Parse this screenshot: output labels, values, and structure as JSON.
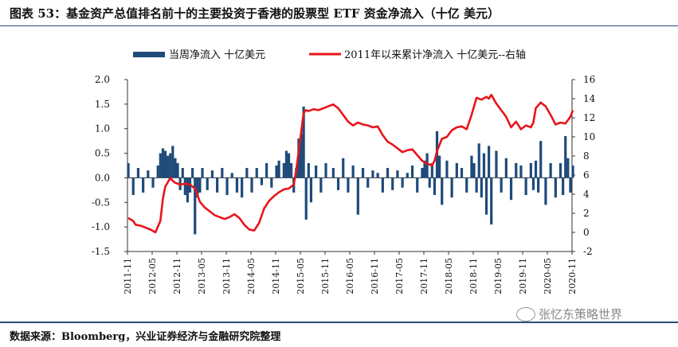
{
  "title": "图表 53：基金资产总值排名前十的主要投资于香港的股票型 ETF 资金净流入（十亿 美元）",
  "source": "数据来源：Bloomberg，兴业证券经济与金融研究院整理",
  "watermark": "张忆东策略世界",
  "colors": {
    "bar": "#1f4a7a",
    "line": "#e8141a",
    "rule": "#2a4d7a"
  },
  "chart_data": {
    "type": "bar+line",
    "x_tick_labels": [
      "2011-11",
      "2012-05",
      "2012-11",
      "2013-05",
      "2013-11",
      "2014-05",
      "2014-11",
      "2015-05",
      "2015-11",
      "2016-05",
      "2016-11",
      "2017-05",
      "2017-11",
      "2018-05",
      "2018-11",
      "2019-05",
      "2019-11",
      "2020-05",
      "2020-11"
    ],
    "y_left": {
      "range": [
        -1.5,
        2.0
      ],
      "ticks": [
        "2.0",
        "1.5",
        "1.0",
        "0.5",
        "0.0",
        "-0.5",
        "-1.0",
        "-1.5"
      ]
    },
    "y_right": {
      "range": [
        -2,
        16
      ],
      "ticks": [
        "16",
        "14",
        "12",
        "10",
        "8",
        "6",
        "4",
        "2",
        "0",
        "-2"
      ]
    },
    "series": [
      {
        "name": "当周净流入 十亿美元",
        "kind": "bar",
        "axis": "left",
        "x": [
          2011.85,
          2011.95,
          2012.05,
          2012.15,
          2012.25,
          2012.35,
          2012.45,
          2012.5,
          2012.55,
          2012.6,
          2012.65,
          2012.7,
          2012.75,
          2012.8,
          2012.85,
          2012.9,
          2012.95,
          2013.0,
          2013.05,
          2013.1,
          2013.15,
          2013.2,
          2013.25,
          2013.3,
          2013.35,
          2013.45,
          2013.55,
          2013.65,
          2013.75,
          2013.85,
          2013.95,
          2014.05,
          2014.15,
          2014.25,
          2014.35,
          2014.45,
          2014.55,
          2014.65,
          2014.75,
          2014.85,
          2014.9,
          2015.0,
          2015.05,
          2015.1,
          2015.15,
          2015.2,
          2015.25,
          2015.3,
          2015.35,
          2015.4,
          2015.45,
          2015.5,
          2015.55,
          2015.65,
          2015.75,
          2015.85,
          2016.0,
          2016.1,
          2016.2,
          2016.3,
          2016.4,
          2016.5,
          2016.6,
          2016.7,
          2016.8,
          2016.9,
          2017.0,
          2017.1,
          2017.2,
          2017.3,
          2017.4,
          2017.5,
          2017.6,
          2017.7,
          2017.8,
          2017.85,
          2017.9,
          2017.95,
          2018.0,
          2018.05,
          2018.1,
          2018.15,
          2018.2,
          2018.3,
          2018.4,
          2018.5,
          2018.6,
          2018.7,
          2018.8,
          2018.85,
          2018.9,
          2018.95,
          2019.0,
          2019.05,
          2019.1,
          2019.15,
          2019.2,
          2019.3,
          2019.4,
          2019.5,
          2019.6,
          2019.7,
          2019.8,
          2019.9,
          2020.0,
          2020.05,
          2020.1,
          2020.15,
          2020.2,
          2020.3,
          2020.4,
          2020.5,
          2020.6,
          2020.65,
          2020.7,
          2020.75,
          2020.8,
          2020.85
        ],
        "values": [
          0.3,
          -0.35,
          0.2,
          -0.3,
          0.15,
          -0.2,
          0.25,
          0.5,
          0.6,
          0.55,
          0.45,
          0.5,
          0.65,
          0.4,
          0.3,
          -0.25,
          0.2,
          -0.35,
          -0.5,
          -0.3,
          0.2,
          -1.15,
          -0.4,
          -0.3,
          0.2,
          -0.25,
          0.15,
          -0.3,
          0.2,
          -0.35,
          0.1,
          -0.3,
          -0.4,
          0.2,
          -0.3,
          0.2,
          -0.15,
          0.3,
          -0.2,
          0.25,
          0.35,
          0.3,
          0.55,
          0.5,
          0.3,
          -0.3,
          0.2,
          0.8,
          0.9,
          1.45,
          -0.85,
          0.3,
          -0.5,
          0.25,
          -0.3,
          0.3,
          0.2,
          -0.25,
          0.4,
          -0.3,
          0.25,
          -0.75,
          0.2,
          -0.2,
          0.15,
          0.1,
          -0.3,
          0.2,
          -0.25,
          0.15,
          -0.2,
          0.1,
          0.25,
          -0.3,
          0.2,
          0.35,
          0.5,
          -0.2,
          0.3,
          -0.35,
          0.95,
          0.45,
          -0.55,
          0.35,
          -0.4,
          0.3,
          0.2,
          -0.3,
          0.45,
          0.3,
          -0.3,
          0.7,
          -0.4,
          0.5,
          -0.75,
          0.65,
          -0.95,
          0.55,
          -0.3,
          0.4,
          -0.45,
          0.3,
          0.25,
          -0.35,
          0.3,
          -0.25,
          0.35,
          -0.3,
          0.75,
          -0.55,
          0.3,
          -0.4,
          0.3,
          -0.35,
          0.85,
          0.4,
          -0.3,
          0.25
        ]
      },
      {
        "name": "2011年以来累计净流入 十亿美元--右轴",
        "kind": "line",
        "axis": "right",
        "x": [
          2011.85,
          2011.95,
          2012.0,
          2012.1,
          2012.2,
          2012.3,
          2012.4,
          2012.5,
          2012.55,
          2012.6,
          2012.7,
          2012.75,
          2012.8,
          2012.9,
          2013.0,
          2013.1,
          2013.2,
          2013.3,
          2013.4,
          2013.5,
          2013.6,
          2013.7,
          2013.8,
          2013.9,
          2014.0,
          2014.1,
          2014.2,
          2014.3,
          2014.4,
          2014.5,
          2014.6,
          2014.7,
          2014.8,
          2014.9,
          2015.0,
          2015.1,
          2015.2,
          2015.25,
          2015.3,
          2015.35,
          2015.4,
          2015.45,
          2015.5,
          2015.6,
          2015.7,
          2015.8,
          2015.9,
          2016.0,
          2016.1,
          2016.2,
          2016.3,
          2016.4,
          2016.5,
          2016.6,
          2016.7,
          2016.8,
          2016.9,
          2017.0,
          2017.1,
          2017.2,
          2017.3,
          2017.4,
          2017.5,
          2017.6,
          2017.7,
          2017.8,
          2017.9,
          2018.0,
          2018.05,
          2018.1,
          2018.2,
          2018.3,
          2018.4,
          2018.5,
          2018.6,
          2018.7,
          2018.8,
          2018.9,
          2019.0,
          2019.1,
          2019.15,
          2019.2,
          2019.3,
          2019.4,
          2019.5,
          2019.6,
          2019.7,
          2019.75,
          2019.8,
          2019.9,
          2020.0,
          2020.05,
          2020.1,
          2020.2,
          2020.3,
          2020.4,
          2020.5,
          2020.6,
          2020.7,
          2020.8,
          2020.85
        ],
        "values": [
          1.5,
          1.2,
          0.8,
          0.7,
          0.5,
          0.3,
          0.0,
          1.2,
          3.5,
          4.8,
          5.7,
          5.4,
          5.2,
          5.0,
          5.1,
          5.0,
          4.6,
          3.2,
          2.6,
          2.2,
          1.8,
          1.6,
          1.4,
          1.6,
          1.9,
          1.5,
          0.8,
          0.3,
          0.2,
          1.0,
          2.5,
          3.3,
          3.8,
          4.2,
          4.5,
          4.6,
          5.0,
          6.5,
          8.5,
          10.5,
          12.5,
          12.8,
          12.7,
          12.9,
          12.8,
          13.0,
          13.2,
          13.4,
          13.0,
          12.3,
          11.6,
          11.2,
          11.5,
          11.3,
          11.2,
          11.0,
          11.1,
          10.2,
          9.5,
          9.2,
          8.8,
          8.4,
          8.6,
          8.7,
          8.1,
          7.5,
          7.2,
          7.0,
          7.5,
          8.5,
          9.8,
          10.0,
          10.7,
          11.0,
          11.1,
          10.8,
          12.3,
          14.1,
          13.9,
          14.2,
          14.0,
          14.4,
          13.5,
          12.8,
          12.1,
          11.0,
          11.6,
          11.2,
          10.8,
          11.2,
          11.0,
          11.5,
          13.0,
          13.6,
          13.2,
          12.3,
          11.3,
          11.5,
          11.4,
          12.1,
          12.8
        ]
      }
    ],
    "grid": false,
    "legend_position": "top"
  }
}
